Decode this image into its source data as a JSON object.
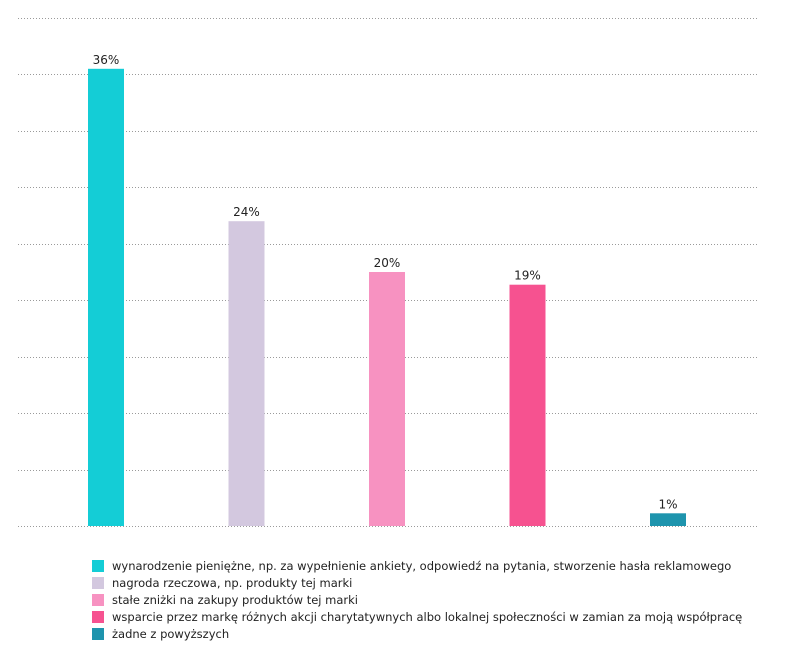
{
  "chart_data": {
    "type": "bar",
    "title": "",
    "xlabel": "",
    "ylabel": "",
    "ylim": [
      0,
      40
    ],
    "grid": true,
    "legend_placement": "bottom",
    "categories": [
      "wynarodzenie pieniężne, np. za wypełnienie ankiety, odpowiedź na pytania, stworzenie hasła reklamowego",
      "nagroda rzeczowa, np. produkty tej marki",
      "stałe zniżki na zakupy produktów tej marki",
      "wsparcie przez markę różnych akcji charytatywnych albo lokalnej społeczności w zamian za moją współpracę",
      "żadne z powyższych"
    ],
    "values": [
      36,
      24,
      20,
      19,
      1
    ],
    "value_labels": [
      "36%",
      "24%",
      "20%",
      "19%",
      "1%"
    ],
    "colors": [
      "#14cdd6",
      "#d3c8df",
      "#f792c1",
      "#f65290",
      "#1e94ad"
    ]
  }
}
